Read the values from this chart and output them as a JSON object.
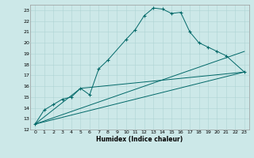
{
  "title": "",
  "xlabel": "Humidex (Indice chaleur)",
  "bg_color": "#cce8e8",
  "grid_color_minor": "#aed4d4",
  "grid_color_major": "#aed4d4",
  "line_color": "#006868",
  "xlim": [
    -0.5,
    23.5
  ],
  "ylim": [
    12,
    23.5
  ],
  "yticks": [
    12,
    13,
    14,
    15,
    16,
    17,
    18,
    19,
    20,
    21,
    22,
    23
  ],
  "xticks": [
    0,
    1,
    2,
    3,
    4,
    5,
    6,
    7,
    8,
    9,
    10,
    11,
    12,
    13,
    14,
    15,
    16,
    17,
    18,
    19,
    20,
    21,
    22,
    23
  ],
  "s1x": [
    0,
    1,
    2,
    3,
    4,
    5,
    6,
    7,
    8,
    10,
    11,
    12,
    13,
    14,
    15,
    16,
    17,
    18,
    19,
    20,
    21,
    23
  ],
  "s1y": [
    12.5,
    13.8,
    14.3,
    14.8,
    15.0,
    15.8,
    15.2,
    17.6,
    18.4,
    20.3,
    21.2,
    22.5,
    23.2,
    23.1,
    22.7,
    22.8,
    21.0,
    20.0,
    19.6,
    19.2,
    18.8,
    17.3
  ],
  "line1x": [
    0,
    23
  ],
  "line1y": [
    12.5,
    17.3
  ],
  "line2x": [
    0,
    5,
    23
  ],
  "line2y": [
    12.5,
    15.8,
    17.3
  ],
  "line3x": [
    0,
    23
  ],
  "line3y": [
    12.5,
    19.2
  ]
}
